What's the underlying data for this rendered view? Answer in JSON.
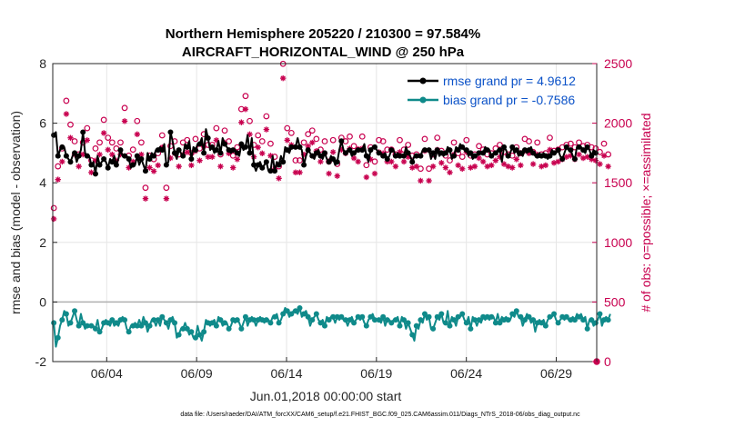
{
  "chart_data": {
    "type": "line",
    "title": "Northern Hemisphere 205220 / 210300 = 97.584%",
    "subtitle": "AIRCRAFT_HORIZONTAL_WIND @ 250 hPa",
    "xlabel": "Jun.01,2018 00:00:00 start",
    "ylabel": "rmse and bias (model - observation)",
    "ylabel_right": "# of obs: o=possible; ×=assimilated",
    "footnote": "data file: /Users/raeder/DAI/ATM_forcXX/CAM6_setup/f.e21.FHIST_BGC.f09_025.CAM6assim.011/Diags_NTrS_2018-06/obs_diag_output.nc",
    "xlim": [
      0.0,
      30.25
    ],
    "ylim": [
      -2,
      8
    ],
    "ylim_right": [
      0,
      2500
    ],
    "xticks": [
      3,
      8,
      13,
      18,
      23,
      28
    ],
    "xtick_labels": [
      "06/04",
      "06/09",
      "06/14",
      "06/19",
      "06/24",
      "06/29"
    ],
    "yticks": [
      -2,
      0,
      2,
      4,
      6,
      8
    ],
    "yticks_right": [
      0,
      500,
      1000,
      1500,
      2000,
      2500
    ],
    "zero_line": 0,
    "grid": true,
    "legend_position": "top-right",
    "colors": {
      "rmse": "#000000",
      "bias": "#0f8a8a",
      "obs": "#c8004f",
      "zero": "#b0b0b0",
      "legend_text": "#0b52c8"
    },
    "series": [
      {
        "name": "rmse",
        "legend": "rmse grand pr = 4.9612",
        "axis": "left",
        "values": [
          5.6,
          5.7,
          4.9,
          5.1,
          5.2,
          5.2,
          4.9,
          4.8,
          4.7,
          4.9,
          5.0,
          4.7,
          4.9,
          5.1,
          5.7,
          5.0,
          4.9,
          4.9,
          4.6,
          4.7,
          4.3,
          4.9,
          4.6,
          4.7,
          4.8,
          4.7,
          4.5,
          4.8,
          4.7,
          4.9,
          4.6,
          4.8,
          5.1,
          4.9,
          4.9,
          4.9,
          4.8,
          4.5,
          4.6,
          4.6,
          4.9,
          4.6,
          4.8,
          4.6,
          4.4,
          5.0,
          4.8,
          5.0,
          4.9,
          5.1,
          5.1,
          5.2,
          5.1,
          5.3,
          4.6,
          4.7,
          5.7,
          5.4,
          5.0,
          4.8,
          5.1,
          5.0,
          4.9,
          5.3,
          5.2,
          5.4,
          4.8,
          5.2,
          5.1,
          5.3,
          5.3,
          5.5,
          5.0,
          5.8,
          5.5,
          5.1,
          5.2,
          5.0,
          5.1,
          5.4,
          5.0,
          5.5,
          5.3,
          5.2,
          5.1,
          5.0,
          5.1,
          5.1,
          5.0,
          4.9,
          5.3,
          5.1,
          5.2,
          5.6,
          5.0,
          5.5,
          4.6,
          4.4,
          4.6,
          4.7,
          4.5,
          4.6,
          4.7,
          4.4,
          4.4,
          4.9,
          4.4,
          4.7,
          4.6,
          4.9,
          4.7,
          5.2,
          5.1,
          5.0,
          5.2,
          5.2,
          5.2,
          5.5,
          5.2,
          5.1,
          4.6,
          4.9,
          5.1,
          5.0,
          4.9,
          4.8,
          5.0,
          5.1,
          4.9,
          4.8,
          5.0,
          4.8,
          4.7,
          4.9,
          4.8,
          4.6,
          4.7,
          5.1,
          5.4,
          5.1,
          5.0,
          5.1,
          5.1,
          4.9,
          5.0,
          5.1,
          5.1,
          5.1,
          5.1,
          5.3,
          4.9,
          4.7,
          5.1,
          5.2,
          5.2,
          5.1,
          5.0,
          5.0,
          4.9,
          5.0,
          4.8,
          4.9,
          5.1,
          5.1,
          4.9,
          5.0,
          4.9,
          4.9,
          4.9,
          5.2,
          5.0,
          4.9,
          4.7,
          4.9,
          4.9,
          4.9,
          4.9,
          5.1,
          5.1,
          5.1,
          5.1,
          4.8,
          5.0,
          4.8,
          5.1,
          4.9,
          5.0,
          4.9,
          5.0,
          5.2,
          5.1,
          4.8,
          4.9,
          5.2,
          5.1,
          5.3,
          5.2,
          5.1,
          5.1,
          4.9,
          5.0,
          4.8,
          4.9,
          4.9,
          5.0,
          5.0,
          5.0,
          5.2,
          5.1,
          5.1,
          4.9,
          5.0,
          5.0,
          5.1,
          5.1,
          4.7,
          5.2,
          5.1,
          4.9,
          5.0,
          5.2,
          5.0,
          5.1,
          4.9,
          5.0,
          4.9,
          5.1,
          5.0,
          5.1,
          5.2,
          5.0,
          4.9,
          4.9,
          5.0,
          4.9,
          5.0,
          4.9,
          4.8,
          4.9,
          5.1,
          5.0,
          5.0,
          5.1,
          4.9,
          4.8,
          5.0,
          5.2,
          5.1,
          5.1,
          4.9,
          4.8,
          5.2,
          5.2,
          5.2,
          5.1,
          5.0,
          5.2,
          5.1,
          4.9,
          5.1,
          5.0
        ]
      },
      {
        "name": "bias",
        "legend": "bias grand pr = -0.7586",
        "axis": "left",
        "values": [
          -0.7,
          -1.5,
          -1.2,
          -0.8,
          -0.6,
          -0.3,
          -0.4,
          -0.8,
          -0.7,
          -0.5,
          -0.3,
          -0.6,
          -0.8,
          -0.4,
          -0.7,
          -0.9,
          -0.8,
          -0.8,
          -0.8,
          -0.8,
          -0.9,
          -0.6,
          -1.0,
          -0.9,
          -0.7,
          -0.6,
          -0.7,
          -0.8,
          -0.6,
          -0.8,
          -0.7,
          -0.8,
          -0.6,
          -0.5,
          -0.6,
          -0.9,
          -1.0,
          -0.8,
          -0.8,
          -0.7,
          -0.8,
          -0.6,
          -0.8,
          -0.5,
          -0.7,
          -1.0,
          -0.8,
          -0.6,
          -0.6,
          -0.8,
          -0.6,
          -0.8,
          -0.5,
          -0.6,
          -0.7,
          -0.9,
          -0.6,
          -0.5,
          -0.7,
          -1.2,
          -1.1,
          -0.9,
          -0.9,
          -0.7,
          -0.9,
          -1.1,
          -1.0,
          -1.2,
          -1.2,
          -0.8,
          -1.1,
          -1.3,
          -1.0,
          -0.6,
          -0.7,
          -0.8,
          -0.7,
          -0.6,
          -0.8,
          -0.5,
          -0.6,
          -0.8,
          -0.7,
          -0.7,
          -0.9,
          -0.8,
          -0.6,
          -0.7,
          -0.6,
          -0.7,
          -0.9,
          -0.7,
          -0.5,
          -0.8,
          -0.6,
          -0.5,
          -0.6,
          -0.8,
          -0.6,
          -0.5,
          -0.6,
          -0.7,
          -0.6,
          -0.6,
          -0.7,
          -0.5,
          -0.5,
          -0.4,
          -0.7,
          -0.6,
          -0.4,
          -0.2,
          -0.3,
          -0.5,
          -0.4,
          -0.3,
          -0.3,
          -0.4,
          -0.2,
          -0.5,
          -0.4,
          -0.3,
          -0.5,
          -0.8,
          -0.6,
          -0.5,
          -0.4,
          -0.6,
          -0.7,
          -0.6,
          -0.8,
          -0.5,
          -0.6,
          -0.5,
          -0.5,
          -0.7,
          -0.5,
          -0.6,
          -0.5,
          -0.6,
          -0.6,
          -0.8,
          -0.6,
          -0.5,
          -0.7,
          -0.6,
          -0.5,
          -0.6,
          -0.5,
          -0.7,
          -0.8,
          -0.6,
          -0.5,
          -0.4,
          -0.6,
          -0.6,
          -0.6,
          -0.7,
          -0.5,
          -0.8,
          -0.6,
          -0.6,
          -0.7,
          -0.6,
          -0.6,
          -0.5,
          -0.8,
          -0.5,
          -0.6,
          -0.9,
          -0.7,
          -0.9,
          -1.1,
          -1.3,
          -0.8,
          -0.9,
          -0.6,
          -0.7,
          -0.4,
          -0.6,
          -0.5,
          -0.9,
          -0.9,
          -0.7,
          -0.5,
          -0.6,
          -0.4,
          -0.7,
          -0.7,
          -0.3,
          -0.8,
          -0.5,
          -0.6,
          -0.8,
          -0.5,
          -0.5,
          -0.4,
          -0.6,
          -0.7,
          -0.5,
          -0.9,
          -0.5,
          -0.6,
          -0.8,
          -0.6,
          -0.7,
          -0.5,
          -0.6,
          -0.5,
          -0.6,
          -0.5,
          -0.5,
          -0.7,
          -0.4,
          -0.7,
          -0.5,
          -0.6,
          -0.5,
          -0.6,
          -0.6,
          -0.4,
          -0.5,
          -0.3,
          -0.5,
          -0.5,
          -0.8,
          -0.6,
          -0.4,
          -0.5,
          -0.7,
          -0.6,
          -1.0,
          -0.7,
          -0.6,
          -0.7,
          -0.6,
          -0.8,
          -0.6,
          -0.5,
          -0.5,
          -0.4,
          -0.6,
          -0.7,
          -0.6,
          -0.5,
          -0.6,
          -0.5,
          -0.6,
          -0.6,
          -0.5,
          -0.6,
          -0.4,
          -0.5,
          -0.4,
          -0.6,
          -0.5,
          -0.9,
          -0.6,
          -0.6,
          -0.8,
          -0.7,
          -0.6,
          -0.4,
          -0.8,
          -0.6,
          -0.5,
          -0.6,
          -0.4
        ]
      },
      {
        "name": "obs_possible",
        "axis": "right",
        "marker": "o",
        "values": [
          1250,
          1850,
          1600,
          1800,
          1750,
          1320,
          2150,
          1820,
          1950,
          2050,
          1810,
          1580,
          1700,
          2000,
          1800,
          1850,
          1920,
          1800,
          1650,
          1320,
          1750,
          1850,
          1800,
          1820,
          1990,
          1800,
          1840,
          1780,
          1800,
          1830,
          1750,
          1780,
          1800,
          1850,
          2090,
          1700,
          1690,
          1880,
          1740,
          1650,
          1980,
          2100,
          1800,
          1880,
          1420,
          1840,
          1690,
          1830,
          1660,
          1400,
          1710,
          1650,
          1860,
          2010,
          1420,
          1720,
          1770,
          1920,
          1810,
          1800,
          1700,
          1690,
          1800,
          1690,
          1820,
          1810,
          1710,
          1900,
          1830,
          1710,
          1750,
          1600,
          1870,
          2030,
          1780,
          2100,
          1780,
          1800,
          1920,
          1640,
          1700,
          1750,
          1900,
          1970,
          1810,
          1820,
          1690,
          1940,
          1760,
          1880,
          2080,
          1780,
          2190,
          1780,
          1980,
          2130,
          1780,
          2090,
          1860,
          1590,
          1810,
          1830,
          2020,
          1810,
          1790,
          1910,
          1680,
          1920,
          1600,
          1680,
          2460,
          1820,
          1920,
          1710,
          1880,
          1900,
          1650,
          1720,
          1650,
          1870,
          1800,
          1820,
          1870,
          1740,
          1900,
          1810,
          1830,
          2050,
          1740,
          1560,
          1810,
          1940,
          1640,
          1740,
          1820,
          1700,
          1620,
          1720,
          1840,
          1790,
          1810,
          1880,
          1850,
          1690,
          1770,
          1800,
          1740,
          1730,
          1850,
          1880,
          1610,
          1620,
          1760,
          1640,
          1640,
          1580,
          1820,
          1860,
          1810,
          1810,
          1740,
          1710,
          1740,
          1810,
          1700,
          1800,
          1820,
          1680,
          1740,
          1790,
          1780,
          1710,
          1690,
          1790,
          1700,
          1800,
          1580,
          1820,
          1830,
          1710,
          1580,
          1820,
          1700,
          1880,
          1840,
          1710,
          1730,
          1780,
          1690,
          1730,
          1650,
          1800,
          1800,
          1840,
          1710,
          1720,
          1680,
          1650,
          1820,
          1710,
          1690,
          1810,
          1700,
          1820,
          1770,
          1720,
          1740,
          1770,
          1700,
          1640,
          1710,
          1790,
          1750,
          1810,
          1780,
          1680,
          1720,
          1700,
          1700,
          1720,
          1690,
          1780,
          1760,
          1730,
          1710,
          1800,
          1830,
          1760,
          1810,
          1750,
          1720,
          1690,
          1800,
          1790,
          1700,
          1740,
          1710,
          1770,
          1840,
          1690,
          1730,
          1700,
          1740,
          1760,
          1760,
          1730,
          1780,
          1720,
          1790,
          1820,
          1760,
          1740,
          1800,
          1720,
          1770,
          1700,
          1780,
          1740,
          1760,
          1710,
          1750,
          1800,
          1720,
          1760,
          1790,
          1740,
          1700,
          1780
        ]
      },
      {
        "name": "obs_assimilated",
        "axis": "right",
        "marker": "x",
        "values": [
          1220,
          1800,
          1550,
          1750,
          1700,
          1290,
          2100,
          1780,
          1900,
          2000,
          1760,
          1540,
          1660,
          1950,
          1760,
          1800,
          1880,
          1760,
          1610,
          1290,
          1710,
          1810,
          1760,
          1780,
          1940,
          1760,
          1800,
          1740,
          1760,
          1790,
          1710,
          1740,
          1760,
          1810,
          2040,
          1660,
          1650,
          1840,
          1700,
          1610,
          1930,
          2050,
          1760,
          1840,
          1390,
          1800,
          1650,
          1790,
          1620,
          1370,
          1670,
          1610,
          1820,
          1960,
          1390,
          1680,
          1730,
          1880,
          1770,
          1760,
          1660,
          1650,
          1760,
          1650,
          1780,
          1770,
          1670,
          1860,
          1790,
          1670,
          1710,
          1560,
          1830,
          1980,
          1740,
          2050,
          1740,
          1760,
          1880,
          1600,
          1660,
          1710,
          1860,
          1920,
          1770,
          1780,
          1650,
          1900,
          1720,
          1840,
          2030,
          1740,
          2140,
          1740,
          1930,
          2080,
          1740,
          2040,
          1820,
          1550,
          1770,
          1790,
          1970,
          1770,
          1750,
          1870,
          1640,
          1880,
          1560,
          1640,
          2400,
          1780,
          1880,
          1670,
          1840,
          1860,
          1610,
          1680,
          1610,
          1830,
          1760,
          1780,
          1830,
          1700,
          1860,
          1770,
          1790,
          2000,
          1700,
          1520,
          1770,
          1900,
          1600,
          1700,
          1780,
          1660,
          1580,
          1680,
          1800,
          1750,
          1770,
          1840,
          1810,
          1650,
          1730,
          1760,
          1700,
          1690,
          1810,
          1840,
          1570,
          1580,
          1720,
          1600,
          1600,
          1540,
          1780,
          1820,
          1770,
          1770,
          1700,
          1670,
          1700,
          1770,
          1660,
          1760,
          1780,
          1640,
          1700,
          1750,
          1740,
          1670,
          1650,
          1750,
          1660,
          1760,
          1540,
          1780,
          1790,
          1670,
          1540,
          1780,
          1660,
          1840,
          1800,
          1670,
          1690,
          1740,
          1650,
          1690,
          1610,
          1760,
          1760,
          1800,
          1670,
          1680,
          1640,
          1610,
          1780,
          1670,
          1650,
          1770,
          1660,
          1780,
          1730,
          1680,
          1700,
          1730,
          1660,
          1600,
          1670,
          1750,
          1710,
          1770,
          1740,
          1640,
          1680,
          1660,
          1660,
          1680,
          1650,
          1740,
          1720,
          1690,
          1670,
          1760,
          1790,
          1720,
          1770,
          1710,
          1680,
          1650,
          1760,
          1750,
          1660,
          1700,
          1670,
          1730,
          1800,
          1650,
          1690,
          1660,
          1700,
          1720,
          1720,
          1690,
          1740,
          1680,
          1750,
          1780,
          1720,
          1700,
          1760,
          1680,
          1730,
          1660,
          1740,
          1700,
          1720,
          1670,
          1710,
          1760,
          1680,
          1720,
          1750,
          1700,
          1660,
          1740
        ]
      }
    ]
  }
}
